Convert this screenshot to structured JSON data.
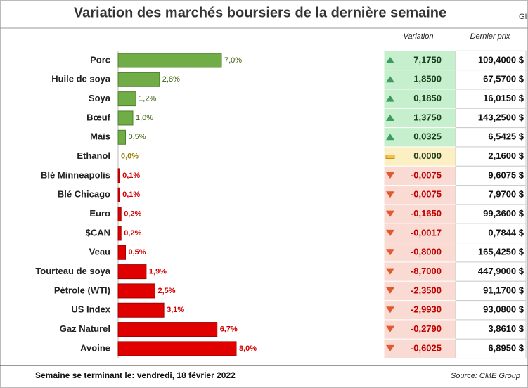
{
  "chart_data": {
    "type": "hbar",
    "title": "Variation des marchés boursiers de la dernière semaine",
    "categories": [
      "Porc",
      "Huile de soya",
      "Soya",
      "Bœuf",
      "Maïs",
      "Ethanol",
      "Blé Minneapolis",
      "Blé Chicago",
      "Euro",
      "$CAN",
      "Veau",
      "Tourteau de soya",
      "Pétrole (WTI)",
      "US Index",
      "Gaz Naturel",
      "Avoine"
    ],
    "values": [
      7.0,
      2.8,
      1.2,
      1.0,
      0.5,
      0.0,
      0.1,
      0.1,
      0.2,
      0.2,
      0.5,
      1.9,
      2.5,
      3.1,
      6.7,
      8.0
    ],
    "value_labels": [
      "7,0%",
      "2,8%",
      "1,2%",
      "1,0%",
      "0,5%",
      "0,0%",
      "0,1%",
      "0,1%",
      "0,2%",
      "0,2%",
      "0,5%",
      "1,9%",
      "2,5%",
      "3,1%",
      "6,7%",
      "8,0%"
    ],
    "colors": [
      "#70ad47",
      "#70ad47",
      "#70ad47",
      "#70ad47",
      "#70ad47",
      "#c9a400",
      "#e00000",
      "#e00000",
      "#e00000",
      "#e00000",
      "#e00000",
      "#e00000",
      "#e00000",
      "#e00000",
      "#e00000",
      "#e00000"
    ],
    "xlim": [
      0,
      8
    ]
  },
  "corner": "GI",
  "table": {
    "headers": [
      "Variation",
      "Dernier prix"
    ],
    "rows": [
      [
        "7,1750",
        "109,4000 $"
      ],
      [
        "1,8500",
        "67,5700 $"
      ],
      [
        "0,1850",
        "16,0150 $"
      ],
      [
        "1,3750",
        "143,2500 $"
      ],
      [
        "0,0325",
        "6,5425 $"
      ],
      [
        "0,0000",
        "2,1600 $"
      ],
      [
        "-0,0075",
        "9,6075 $"
      ],
      [
        "-0,0075",
        "7,9700 $"
      ],
      [
        "-0,1650",
        "99,3600 $"
      ],
      [
        "-0,0017",
        "0,7844 $"
      ],
      [
        "-0,8000",
        "165,4250 $"
      ],
      [
        "-8,7000",
        "447,9000 $"
      ],
      [
        "-2,3500",
        "91,1700 $"
      ],
      [
        "-2,9930",
        "93,0800 $"
      ],
      [
        "-0,2790",
        "3,8610 $"
      ],
      [
        "-0,6025",
        "6,8950 $"
      ]
    ]
  },
  "footer": {
    "date": "Semaine se terminant le: vendredi, 18 février 2022",
    "source": "Source: CME Group"
  }
}
